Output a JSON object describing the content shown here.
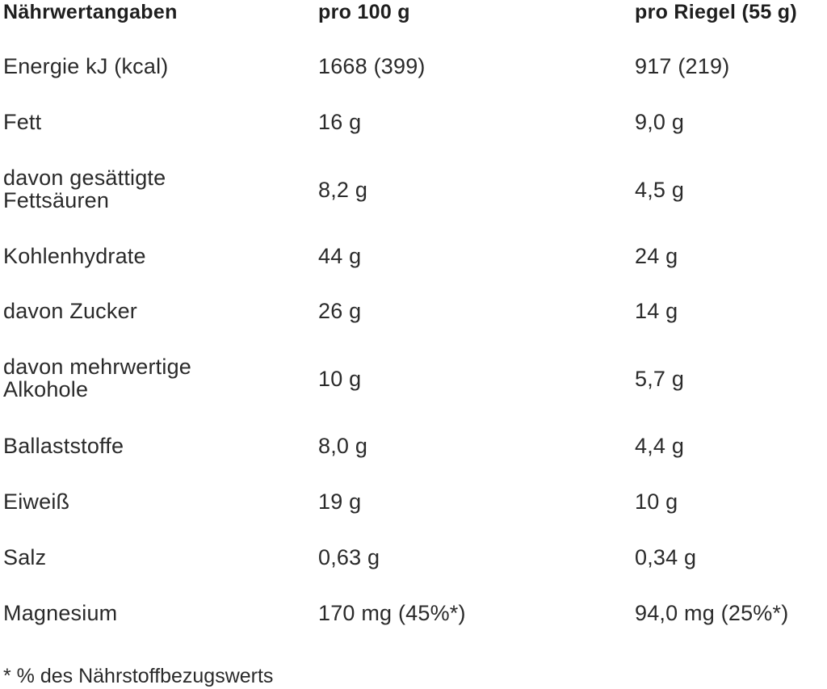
{
  "header": {
    "col1": "Nährwertangaben",
    "col2": "pro 100 g",
    "col3": "pro Riegel (55 g)"
  },
  "rows": [
    {
      "name": "Energie kJ (kcal)",
      "per100": "1668 (399)",
      "perBar": "917 (219)"
    },
    {
      "name": "Fett",
      "per100": "16 g",
      "perBar": "9,0 g"
    },
    {
      "name": "davon gesättigte Fettsäuren",
      "per100": "8,2 g",
      "perBar": "4,5 g"
    },
    {
      "name": "Kohlenhydrate",
      "per100": "44 g",
      "perBar": "24 g"
    },
    {
      "name": "davon Zucker",
      "per100": "26 g",
      "perBar": "14 g"
    },
    {
      "name": "davon mehrwertige Alkohole",
      "per100": "10 g",
      "perBar": "5,7 g"
    },
    {
      "name": "Ballaststoffe",
      "per100": "8,0 g",
      "perBar": "4,4 g"
    },
    {
      "name": "Eiweiß",
      "per100": "19 g",
      "perBar": "10 g"
    },
    {
      "name": "Salz",
      "per100": "0,63 g",
      "perBar": "0,34 g"
    },
    {
      "name": "Magnesium",
      "per100": "170 mg (45%*)",
      "perBar": "94,0 mg (25%*)"
    }
  ],
  "footnote": "* % des Nährstoffbezugswerts"
}
